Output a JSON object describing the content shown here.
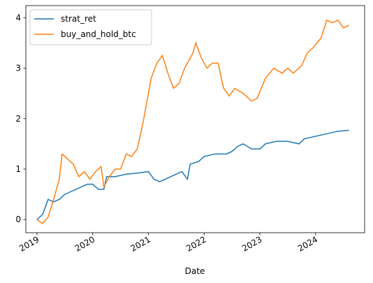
{
  "chart_data": {
    "type": "line",
    "x_label": "Date",
    "xlim": [
      2018.8,
      2024.88
    ],
    "xticks": [
      2019,
      2020,
      2021,
      2022,
      2023,
      2024
    ],
    "ylim": [
      -0.26,
      4.24
    ],
    "yticks": [
      0,
      1,
      2,
      3,
      4
    ],
    "legend": "upper-left",
    "series": [
      {
        "name": "strat_ret",
        "color": "#1f77b4",
        "x": [
          2019.0,
          2019.1,
          2019.2,
          2019.3,
          2019.4,
          2019.5,
          2019.6,
          2019.7,
          2019.8,
          2019.9,
          2020.0,
          2020.1,
          2020.2,
          2020.25,
          2020.4,
          2020.6,
          2020.8,
          2021.0,
          2021.1,
          2021.2,
          2021.4,
          2021.6,
          2021.7,
          2021.75,
          2021.9,
          2022.0,
          2022.2,
          2022.4,
          2022.5,
          2022.6,
          2022.7,
          2022.85,
          2023.0,
          2023.1,
          2023.3,
          2023.5,
          2023.7,
          2023.8,
          2024.0,
          2024.2,
          2024.4,
          2024.6
        ],
        "values": [
          0,
          0.1,
          0.4,
          0.35,
          0.4,
          0.5,
          0.55,
          0.6,
          0.65,
          0.7,
          0.7,
          0.6,
          0.6,
          0.85,
          0.85,
          0.9,
          0.92,
          0.95,
          0.8,
          0.75,
          0.85,
          0.95,
          0.8,
          1.1,
          1.15,
          1.25,
          1.3,
          1.3,
          1.35,
          1.45,
          1.5,
          1.4,
          1.4,
          1.5,
          1.55,
          1.55,
          1.5,
          1.6,
          1.65,
          1.7,
          1.75,
          1.77
        ]
      },
      {
        "name": "buy_and_hold_btc",
        "color": "#ff7f0e",
        "x": [
          2019.0,
          2019.1,
          2019.2,
          2019.3,
          2019.4,
          2019.45,
          2019.55,
          2019.65,
          2019.75,
          2019.85,
          2019.95,
          2020.05,
          2020.15,
          2020.2,
          2020.3,
          2020.4,
          2020.5,
          2020.6,
          2020.7,
          2020.8,
          2020.9,
          2021.0,
          2021.05,
          2021.15,
          2021.25,
          2021.35,
          2021.45,
          2021.55,
          2021.65,
          2021.8,
          2021.85,
          2021.95,
          2022.05,
          2022.15,
          2022.25,
          2022.35,
          2022.45,
          2022.55,
          2022.7,
          2022.85,
          2022.95,
          2023.1,
          2023.25,
          2023.4,
          2023.5,
          2023.6,
          2023.75,
          2023.85,
          2023.95,
          2024.1,
          2024.2,
          2024.3,
          2024.4,
          2024.5,
          2024.6
        ],
        "values": [
          0,
          -0.08,
          0.05,
          0.4,
          0.8,
          1.3,
          1.2,
          1.1,
          0.85,
          0.95,
          0.8,
          0.95,
          1.05,
          0.65,
          0.85,
          1.0,
          1.0,
          1.3,
          1.25,
          1.4,
          1.9,
          2.5,
          2.8,
          3.1,
          3.25,
          2.9,
          2.6,
          2.7,
          3.0,
          3.3,
          3.5,
          3.2,
          3.0,
          3.1,
          3.1,
          2.6,
          2.45,
          2.6,
          2.5,
          2.35,
          2.4,
          2.8,
          3.0,
          2.9,
          3.0,
          2.9,
          3.05,
          3.3,
          3.4,
          3.6,
          3.95,
          3.9,
          3.95,
          3.8,
          3.85
        ]
      }
    ]
  }
}
